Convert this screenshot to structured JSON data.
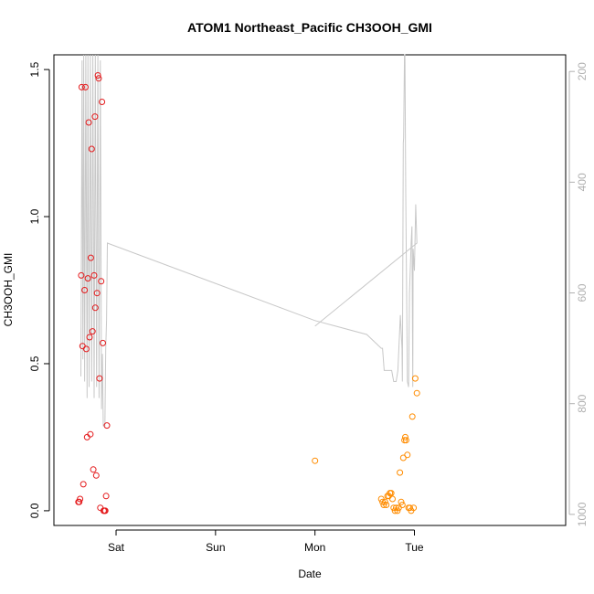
{
  "chart_data": {
    "type": "scatter",
    "title": "ATOM1 Northeast_Pacific CH3OOH_GMI",
    "xlabel": "Date",
    "ylabel": "CH3OOH_GMI",
    "x_axis": {
      "range_hours": [
        -15.0,
        108.5
      ],
      "ticks": [
        {
          "label": "Sat",
          "hour": 0
        },
        {
          "label": "Sun",
          "hour": 24
        },
        {
          "label": "Mon",
          "hour": 48
        },
        {
          "label": "Tue",
          "hour": 72
        }
      ]
    },
    "y_axis": {
      "range": [
        -0.05,
        1.55
      ],
      "ticks": [
        {
          "label": "0.0",
          "value": 0.0
        },
        {
          "label": "0.5",
          "value": 0.5
        },
        {
          "label": "1.0",
          "value": 1.0
        },
        {
          "label": "1.5",
          "value": 1.5
        }
      ]
    },
    "y2_axis": {
      "label": "",
      "reversed": true,
      "range": [
        1020,
        170
      ],
      "ticks": [
        {
          "label": "200",
          "value": 200
        },
        {
          "label": "400",
          "value": 400
        },
        {
          "label": "600",
          "value": 600
        },
        {
          "label": "800",
          "value": 800
        },
        {
          "label": "1000",
          "value": 1000
        }
      ]
    },
    "series": [
      {
        "color": "#e41a1c",
        "marker": "open-circle",
        "points": [
          [
            -9.1,
            0.03
          ],
          [
            -8.9,
            0.03
          ],
          [
            -8.7,
            0.04
          ],
          [
            -8.4,
            0.8
          ],
          [
            -8.3,
            1.44
          ],
          [
            -8.1,
            0.56
          ],
          [
            -7.9,
            0.09
          ],
          [
            -7.6,
            0.75
          ],
          [
            -7.4,
            1.44
          ],
          [
            -7.2,
            0.55
          ],
          [
            -7.0,
            0.25
          ],
          [
            -6.8,
            0.79
          ],
          [
            -6.6,
            1.32
          ],
          [
            -6.4,
            0.59
          ],
          [
            -6.2,
            0.26
          ],
          [
            -6.1,
            0.86
          ],
          [
            -5.9,
            1.23
          ],
          [
            -5.7,
            0.61
          ],
          [
            -5.5,
            0.14
          ],
          [
            -5.3,
            0.8
          ],
          [
            -5.1,
            1.34
          ],
          [
            -5.0,
            0.69
          ],
          [
            -4.8,
            0.12
          ],
          [
            -4.6,
            0.74
          ],
          [
            -4.4,
            1.48
          ],
          [
            -4.2,
            1.47
          ],
          [
            -4.0,
            0.45
          ],
          [
            -3.8,
            0.01
          ],
          [
            -3.6,
            0.78
          ],
          [
            -3.4,
            1.39
          ],
          [
            -3.2,
            0.57
          ],
          [
            -3.0,
            0.0
          ],
          [
            -2.8,
            0.0
          ],
          [
            -2.6,
            0.0
          ],
          [
            -2.4,
            0.05
          ],
          [
            -2.2,
            0.29
          ]
        ]
      },
      {
        "color": "#ff8c00",
        "marker": "open-circle",
        "points": [
          [
            48.0,
            0.17
          ],
          [
            64.0,
            0.04
          ],
          [
            64.3,
            0.03
          ],
          [
            64.6,
            0.02
          ],
          [
            64.9,
            0.03
          ],
          [
            65.2,
            0.02
          ],
          [
            65.5,
            0.05
          ],
          [
            65.8,
            0.05
          ],
          [
            66.1,
            0.06
          ],
          [
            66.4,
            0.06
          ],
          [
            66.7,
            0.04
          ],
          [
            67.0,
            0.01
          ],
          [
            67.3,
            0.0
          ],
          [
            67.6,
            0.01
          ],
          [
            67.9,
            0.0
          ],
          [
            68.2,
            0.01
          ],
          [
            68.5,
            0.13
          ],
          [
            68.8,
            0.03
          ],
          [
            69.1,
            0.02
          ],
          [
            69.3,
            0.18
          ],
          [
            69.6,
            0.24
          ],
          [
            69.8,
            0.25
          ],
          [
            70.0,
            0.24
          ],
          [
            70.3,
            0.19
          ],
          [
            70.6,
            0.01
          ],
          [
            70.9,
            0.01
          ],
          [
            71.2,
            0.0
          ],
          [
            71.5,
            0.32
          ],
          [
            71.8,
            0.01
          ],
          [
            72.2,
            0.45
          ],
          [
            72.6,
            0.4
          ]
        ]
      }
    ],
    "pressure_line": {
      "color": "#c8c8c8",
      "points": [
        [
          -8.6,
          750
        ],
        [
          -8.5,
          750
        ],
        [
          -8.2,
          180
        ],
        [
          -8.0,
          720
        ],
        [
          -7.8,
          160
        ],
        [
          -7.6,
          760
        ],
        [
          -7.3,
          160
        ],
        [
          -7.0,
          790
        ],
        [
          -6.8,
          160
        ],
        [
          -6.5,
          770
        ],
        [
          -6.2,
          160
        ],
        [
          -5.9,
          760
        ],
        [
          -5.6,
          160
        ],
        [
          -5.3,
          790
        ],
        [
          -5.0,
          160
        ],
        [
          -4.7,
          770
        ],
        [
          -4.4,
          160
        ],
        [
          -4.1,
          790
        ],
        [
          -3.8,
          180
        ],
        [
          -3.5,
          810
        ],
        [
          -3.3,
          710
        ],
        [
          -3.1,
          840
        ],
        [
          -2.7,
          840
        ],
        [
          -2.5,
          700
        ],
        [
          -2.3,
          650
        ],
        [
          -2.1,
          510
        ],
        [
          48.0,
          650
        ],
        [
          60.5,
          675
        ],
        [
          64.0,
          700
        ],
        [
          64.3,
          700
        ],
        [
          64.7,
          740
        ],
        [
          66.5,
          740
        ],
        [
          67.0,
          760
        ],
        [
          67.6,
          760
        ],
        [
          68.0,
          740
        ],
        [
          68.6,
          640
        ],
        [
          69.0,
          700
        ],
        [
          69.1,
          760
        ],
        [
          69.3,
          330
        ],
        [
          69.4,
          320
        ],
        [
          69.6,
          160
        ],
        [
          69.7,
          160
        ],
        [
          69.9,
          420
        ],
        [
          70.3,
          760
        ],
        [
          70.6,
          770
        ],
        [
          70.8,
          600
        ],
        [
          71.2,
          510
        ],
        [
          71.4,
          480
        ],
        [
          71.6,
          770
        ],
        [
          71.7,
          520
        ],
        [
          72.0,
          560
        ],
        [
          72.3,
          440
        ],
        [
          72.6,
          510
        ],
        [
          48.0,
          660
        ]
      ]
    }
  }
}
